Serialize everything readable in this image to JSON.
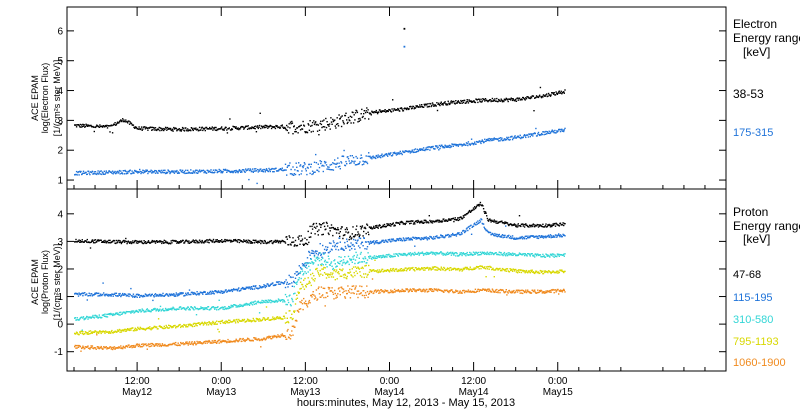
{
  "chart_data": {
    "type": "scatter",
    "xlabel": "hours:minutes, May 12, 2013 - May 15, 2013",
    "x_unit": "hours since 2013-05-12 00:00",
    "xlim": [
      2,
      96
    ],
    "xticks": [
      {
        "x": 12,
        "time": "12:00",
        "date": "May12"
      },
      {
        "x": 24,
        "time": "0:00",
        "date": "May13"
      },
      {
        "x": 36,
        "time": "12:00",
        "date": "May13"
      },
      {
        "x": 48,
        "time": "0:00",
        "date": "May14"
      },
      {
        "x": 60,
        "time": "12:00",
        "date": "May14"
      },
      {
        "x": 72,
        "time": "0:00",
        "date": "May15"
      }
    ],
    "panels": [
      {
        "id": "electron",
        "ylabel_lines": [
          "ACE EPAM",
          "log(Electron Flux)",
          "[1/(cm²s ster MeV)]"
        ],
        "ylim": [
          0.7,
          6.8
        ],
        "yticks": [
          1,
          2,
          3,
          4,
          5,
          6
        ],
        "legend_title": [
          "Electron",
          "Energy range"
        ],
        "legend_unit": "[keV]",
        "series": [
          {
            "name": "38-53",
            "color": "#000000",
            "points": [
              [
                3,
                2.85
              ],
              [
                8,
                2.8
              ],
              [
                10,
                3.05
              ],
              [
                12,
                2.75
              ],
              [
                18,
                2.72
              ],
              [
                24,
                2.75
              ],
              [
                30,
                2.8
              ],
              [
                36,
                2.82
              ],
              [
                40,
                2.95
              ],
              [
                42,
                3.1
              ],
              [
                46,
                3.3
              ],
              [
                50,
                3.4
              ],
              [
                54,
                3.55
              ],
              [
                58,
                3.65
              ],
              [
                62,
                3.7
              ],
              [
                66,
                3.72
              ],
              [
                70,
                3.85
              ],
              [
                73,
                4.0
              ]
            ]
          },
          {
            "name": "175-315",
            "color": "#1f73d9",
            "points": [
              [
                3,
                1.25
              ],
              [
                8,
                1.28
              ],
              [
                12,
                1.3
              ],
              [
                18,
                1.3
              ],
              [
                24,
                1.32
              ],
              [
                30,
                1.35
              ],
              [
                36,
                1.4
              ],
              [
                40,
                1.55
              ],
              [
                43,
                1.7
              ],
              [
                46,
                1.8
              ],
              [
                50,
                1.95
              ],
              [
                54,
                2.1
              ],
              [
                58,
                2.2
              ],
              [
                62,
                2.35
              ],
              [
                66,
                2.45
              ],
              [
                70,
                2.6
              ],
              [
                73,
                2.7
              ]
            ]
          }
        ],
        "outliers": [
          {
            "x": 50,
            "y": 6.1
          },
          {
            "x": 50,
            "y": 5.5
          }
        ]
      },
      {
        "id": "proton",
        "ylabel_lines": [
          "ACE EPAM",
          "log(Proton Flux)",
          "[1/(cm²s ster MeV)]"
        ],
        "ylim": [
          -1.7,
          4.9
        ],
        "yticks": [
          -1,
          0,
          1,
          2,
          3,
          4
        ],
        "legend_title": [
          "Proton",
          "Energy range"
        ],
        "legend_unit": "[keV]",
        "series": [
          {
            "name": "47-68",
            "color": "#000000",
            "points": [
              [
                3,
                3.05
              ],
              [
                10,
                3.0
              ],
              [
                18,
                3.0
              ],
              [
                24,
                3.05
              ],
              [
                30,
                3.0
              ],
              [
                36,
                3.05
              ],
              [
                37,
                3.45
              ],
              [
                39,
                3.5
              ],
              [
                42,
                3.3
              ],
              [
                46,
                3.55
              ],
              [
                50,
                3.7
              ],
              [
                54,
                3.75
              ],
              [
                58,
                3.85
              ],
              [
                61,
                4.4
              ],
              [
                62,
                3.8
              ],
              [
                66,
                3.6
              ],
              [
                70,
                3.6
              ],
              [
                73,
                3.65
              ]
            ]
          },
          {
            "name": "115-195",
            "color": "#1f73d9",
            "points": [
              [
                3,
                1.1
              ],
              [
                8,
                1.1
              ],
              [
                12,
                1.05
              ],
              [
                18,
                1.1
              ],
              [
                24,
                1.2
              ],
              [
                30,
                1.4
              ],
              [
                34,
                1.6
              ],
              [
                36,
                2.3
              ],
              [
                37,
                2.7
              ],
              [
                38,
                2.6
              ],
              [
                40,
                2.95
              ],
              [
                42,
                2.9
              ],
              [
                46,
                3.0
              ],
              [
                50,
                3.1
              ],
              [
                54,
                3.15
              ],
              [
                58,
                3.3
              ],
              [
                61,
                3.8
              ],
              [
                62,
                3.3
              ],
              [
                66,
                3.15
              ],
              [
                70,
                3.2
              ],
              [
                73,
                3.25
              ]
            ]
          },
          {
            "name": "310-580",
            "color": "#33d6d6",
            "points": [
              [
                3,
                0.2
              ],
              [
                8,
                0.35
              ],
              [
                12,
                0.5
              ],
              [
                18,
                0.6
              ],
              [
                24,
                0.6
              ],
              [
                30,
                0.85
              ],
              [
                34,
                0.9
              ],
              [
                35,
                1.8
              ],
              [
                37,
                2.3
              ],
              [
                38,
                2.4
              ],
              [
                40,
                2.2
              ],
              [
                42,
                2.4
              ],
              [
                46,
                2.45
              ],
              [
                50,
                2.55
              ],
              [
                54,
                2.6
              ],
              [
                58,
                2.55
              ],
              [
                61,
                2.6
              ],
              [
                66,
                2.55
              ],
              [
                70,
                2.5
              ],
              [
                73,
                2.55
              ]
            ]
          },
          {
            "name": "795-1193",
            "color": "#d8d800",
            "points": [
              [
                3,
                -0.3
              ],
              [
                8,
                -0.25
              ],
              [
                12,
                -0.15
              ],
              [
                18,
                -0.05
              ],
              [
                24,
                0.1
              ],
              [
                30,
                0.2
              ],
              [
                34,
                0.3
              ],
              [
                35,
                1.3
              ],
              [
                37,
                1.7
              ],
              [
                38,
                1.95
              ],
              [
                40,
                1.8
              ],
              [
                42,
                1.9
              ],
              [
                46,
                1.95
              ],
              [
                50,
                2.0
              ],
              [
                54,
                2.05
              ],
              [
                58,
                2.0
              ],
              [
                61,
                2.1
              ],
              [
                66,
                1.95
              ],
              [
                70,
                1.9
              ],
              [
                73,
                1.95
              ]
            ]
          },
          {
            "name": "1060-1900",
            "color": "#f08a1e",
            "points": [
              [
                3,
                -0.8
              ],
              [
                8,
                -0.85
              ],
              [
                12,
                -0.75
              ],
              [
                18,
                -0.7
              ],
              [
                24,
                -0.6
              ],
              [
                30,
                -0.5
              ],
              [
                34,
                -0.3
              ],
              [
                35,
                0.6
              ],
              [
                37,
                1.0
              ],
              [
                38,
                1.2
              ],
              [
                40,
                1.15
              ],
              [
                42,
                1.2
              ],
              [
                46,
                1.2
              ],
              [
                50,
                1.25
              ],
              [
                54,
                1.25
              ],
              [
                58,
                1.2
              ],
              [
                61,
                1.25
              ],
              [
                66,
                1.2
              ],
              [
                70,
                1.2
              ],
              [
                73,
                1.25
              ]
            ]
          }
        ]
      }
    ]
  }
}
